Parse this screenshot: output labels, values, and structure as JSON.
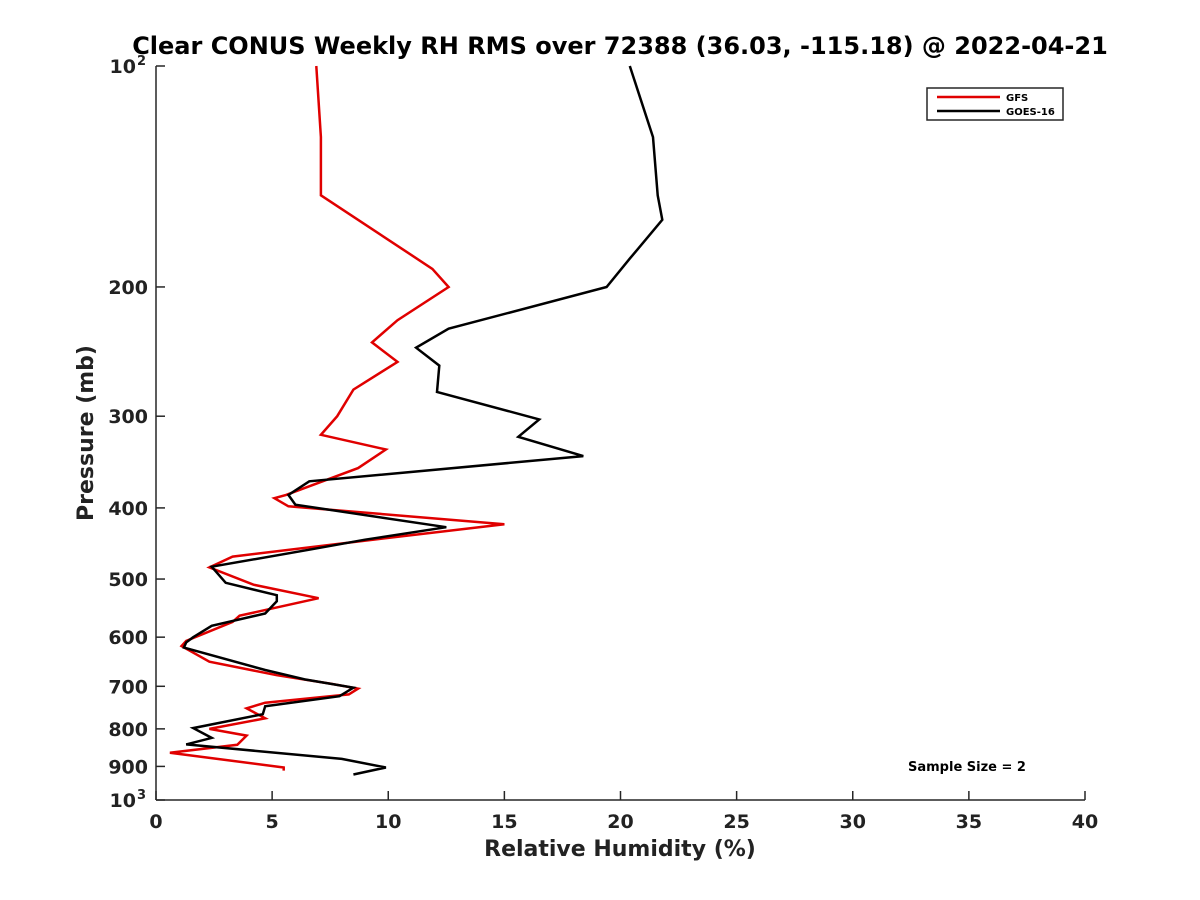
{
  "chart_data": {
    "type": "line",
    "title": "Clear CONUS Weekly RH RMS over 72388 (36.03, -115.18) @ 2022-04-21",
    "xlabel": "Relative Humidity (%)",
    "ylabel": "Pressure (mb)",
    "xlim": [
      0,
      40
    ],
    "ylim": [
      100,
      1000
    ],
    "y_scale": "log",
    "y_reversed": true,
    "grid": false,
    "legend_position": "top-right",
    "annotation": "Sample Size = 2",
    "x_ticks": [
      {
        "value": 0,
        "label": "0"
      },
      {
        "value": 5,
        "label": "5"
      },
      {
        "value": 10,
        "label": "10"
      },
      {
        "value": 15,
        "label": "15"
      },
      {
        "value": 20,
        "label": "20"
      },
      {
        "value": 25,
        "label": "25"
      },
      {
        "value": 30,
        "label": "30"
      },
      {
        "value": 35,
        "label": "35"
      },
      {
        "value": 40,
        "label": "40"
      }
    ],
    "y_ticks": [
      {
        "value": 100,
        "base": "10",
        "exp": "2"
      },
      {
        "value": 200,
        "label": "200"
      },
      {
        "value": 300,
        "label": "300"
      },
      {
        "value": 400,
        "label": "400"
      },
      {
        "value": 500,
        "label": "500"
      },
      {
        "value": 600,
        "label": "600"
      },
      {
        "value": 700,
        "label": "700"
      },
      {
        "value": 800,
        "label": "800"
      },
      {
        "value": 900,
        "label": "900"
      },
      {
        "value": 1000,
        "base": "10",
        "exp": "3"
      }
    ],
    "series": [
      {
        "name": "GFS",
        "color": "#e00000",
        "points": [
          [
            6.9,
            100
          ],
          [
            7.1,
            125
          ],
          [
            7.1,
            150
          ],
          [
            11.9,
            189
          ],
          [
            12.6,
            200
          ],
          [
            10.4,
            222
          ],
          [
            9.3,
            238
          ],
          [
            10.4,
            253
          ],
          [
            8.5,
            276
          ],
          [
            7.8,
            300
          ],
          [
            7.1,
            318
          ],
          [
            9.9,
            333
          ],
          [
            8.7,
            353
          ],
          [
            5.6,
            384
          ],
          [
            5.1,
            388
          ],
          [
            5.7,
            398
          ],
          [
            15.0,
            421
          ],
          [
            9.6,
            441
          ],
          [
            3.3,
            466
          ],
          [
            2.3,
            482
          ],
          [
            4.2,
            509
          ],
          [
            7.0,
            531
          ],
          [
            3.6,
            561
          ],
          [
            3.3,
            572
          ],
          [
            1.3,
            607
          ],
          [
            1.1,
            617
          ],
          [
            2.3,
            648
          ],
          [
            5.2,
            676
          ],
          [
            7.5,
            694
          ],
          [
            8.7,
            705
          ],
          [
            8.3,
            718
          ],
          [
            4.7,
            737
          ],
          [
            3.9,
            750
          ],
          [
            4.7,
            774
          ],
          [
            2.3,
            800
          ],
          [
            3.9,
            817
          ],
          [
            3.5,
            841
          ],
          [
            0.6,
            862
          ],
          [
            5.5,
            903
          ],
          [
            5.5,
            912
          ]
        ]
      },
      {
        "name": "GOES-16",
        "color": "#000000",
        "points": [
          [
            20.4,
            100
          ],
          [
            21.4,
            125
          ],
          [
            21.6,
            150
          ],
          [
            21.8,
            162
          ],
          [
            20.4,
            183
          ],
          [
            19.4,
            200
          ],
          [
            12.6,
            228
          ],
          [
            11.2,
            242
          ],
          [
            12.2,
            256
          ],
          [
            12.1,
            278
          ],
          [
            16.5,
            303
          ],
          [
            15.6,
            320
          ],
          [
            18.4,
            340
          ],
          [
            6.6,
            368
          ],
          [
            5.7,
            384
          ],
          [
            6.0,
            396
          ],
          [
            12.5,
            425
          ],
          [
            9.0,
            442
          ],
          [
            6.6,
            456
          ],
          [
            2.4,
            481
          ],
          [
            3.0,
            506
          ],
          [
            5.2,
            526
          ],
          [
            5.2,
            536
          ],
          [
            4.7,
            557
          ],
          [
            2.4,
            579
          ],
          [
            1.6,
            600
          ],
          [
            1.3,
            610
          ],
          [
            1.2,
            620
          ],
          [
            4.7,
            665
          ],
          [
            6.4,
            685
          ],
          [
            8.5,
            703
          ],
          [
            7.9,
            722
          ],
          [
            4.7,
            745
          ],
          [
            4.6,
            764
          ],
          [
            1.6,
            798
          ],
          [
            2.4,
            823
          ],
          [
            1.3,
            840
          ],
          [
            8.0,
            879
          ],
          [
            9.9,
            903
          ],
          [
            8.5,
            923
          ]
        ]
      }
    ]
  }
}
